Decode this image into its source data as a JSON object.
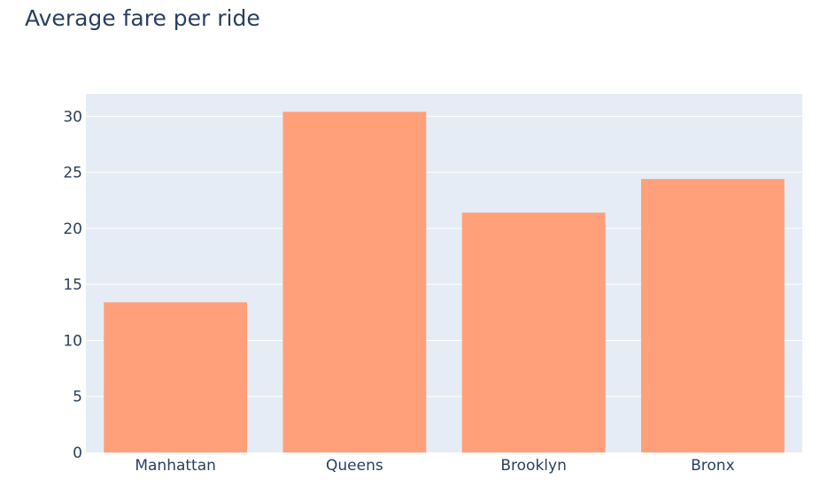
{
  "colors": {
    "bar": "#ffa07a",
    "plot_background": "#e5ecf6",
    "grid": "#ffffff",
    "text": "#2a3f5f"
  },
  "chart_data": {
    "type": "bar",
    "title": "Average fare per ride",
    "xlabel": "",
    "ylabel": "",
    "categories": [
      "Manhattan",
      "Queens",
      "Brooklyn",
      "Bronx"
    ],
    "values": [
      13.4,
      30.4,
      21.4,
      24.4
    ],
    "ylim": [
      0,
      32
    ],
    "yticks": [
      0,
      5,
      10,
      15,
      20,
      25,
      30
    ],
    "grid": true,
    "legend": "none"
  }
}
